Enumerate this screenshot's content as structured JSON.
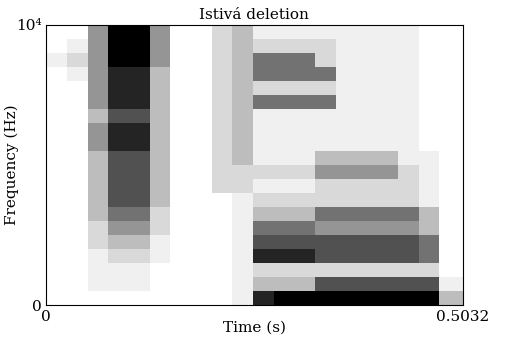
{
  "chart_data": {
    "type": "spectrogram",
    "title": "Istivá deletion",
    "x_label": "Time (s)",
    "y_label": "Frequency (Hz)",
    "xlim": [
      0,
      0.5032
    ],
    "ylim": [
      0,
      10000
    ],
    "xticks": [
      0,
      0.5032
    ],
    "yticks": [
      0,
      {
        "value": 10000,
        "label": "10⁴"
      }
    ],
    "x_edges": [
      0,
      0.025,
      0.05,
      0.075,
      0.1,
      0.125,
      0.15,
      0.175,
      0.2,
      0.225,
      0.25,
      0.275,
      0.3,
      0.325,
      0.35,
      0.375,
      0.4,
      0.425,
      0.45,
      0.475,
      0.5032
    ],
    "y_edges": [
      0,
      500,
      1000,
      1500,
      2000,
      2500,
      3000,
      3500,
      4000,
      4500,
      5000,
      5500,
      6000,
      6500,
      7000,
      7500,
      8000,
      8500,
      9000,
      9500,
      10000
    ],
    "cells": [
      [
        0,
        0,
        0,
        0,
        0,
        0,
        0,
        0,
        0,
        1,
        7,
        8,
        8,
        8,
        8,
        8,
        8,
        8,
        8,
        3
      ],
      [
        0,
        0,
        1,
        1,
        1,
        0,
        0,
        0,
        0,
        1,
        3,
        3,
        3,
        6,
        6,
        6,
        6,
        6,
        6,
        1
      ],
      [
        0,
        0,
        1,
        1,
        1,
        0,
        0,
        0,
        0,
        1,
        2,
        2,
        2,
        2,
        2,
        2,
        2,
        2,
        2,
        0
      ],
      [
        0,
        0,
        1,
        2,
        2,
        1,
        0,
        0,
        0,
        1,
        7,
        7,
        7,
        6,
        6,
        6,
        6,
        6,
        5,
        0
      ],
      [
        0,
        0,
        2,
        3,
        3,
        1,
        0,
        0,
        0,
        1,
        6,
        6,
        6,
        6,
        6,
        6,
        6,
        6,
        5,
        0
      ],
      [
        0,
        0,
        2,
        4,
        4,
        2,
        0,
        0,
        0,
        1,
        5,
        5,
        5,
        4,
        4,
        4,
        4,
        4,
        3,
        0
      ],
      [
        0,
        0,
        3,
        5,
        5,
        2,
        0,
        0,
        0,
        1,
        3,
        3,
        3,
        5,
        5,
        5,
        5,
        5,
        3,
        0
      ],
      [
        0,
        0,
        3,
        6,
        6,
        3,
        0,
        0,
        0,
        1,
        2,
        2,
        2,
        2,
        2,
        2,
        2,
        2,
        1,
        0
      ],
      [
        0,
        0,
        3,
        6,
        6,
        3,
        0,
        0,
        2,
        2,
        1,
        1,
        1,
        2,
        2,
        2,
        2,
        2,
        1,
        0
      ],
      [
        0,
        0,
        3,
        6,
        6,
        3,
        0,
        0,
        2,
        2,
        2,
        2,
        2,
        4,
        4,
        4,
        4,
        2,
        1,
        0
      ],
      [
        0,
        0,
        3,
        6,
        6,
        3,
        0,
        0,
        2,
        3,
        1,
        1,
        1,
        3,
        3,
        3,
        3,
        1,
        1,
        0
      ],
      [
        0,
        0,
        4,
        7,
        7,
        3,
        0,
        0,
        2,
        3,
        1,
        1,
        1,
        1,
        1,
        1,
        1,
        1,
        0,
        0
      ],
      [
        0,
        0,
        4,
        7,
        7,
        3,
        0,
        0,
        2,
        3,
        1,
        1,
        1,
        1,
        1,
        1,
        1,
        1,
        0,
        0
      ],
      [
        0,
        0,
        3,
        6,
        6,
        3,
        0,
        0,
        2,
        3,
        1,
        1,
        1,
        1,
        1,
        1,
        1,
        1,
        0,
        0
      ],
      [
        0,
        0,
        4,
        7,
        7,
        3,
        0,
        0,
        2,
        3,
        5,
        5,
        5,
        5,
        1,
        1,
        1,
        1,
        0,
        0
      ],
      [
        0,
        0,
        4,
        7,
        7,
        3,
        0,
        0,
        2,
        3,
        2,
        2,
        2,
        2,
        1,
        1,
        1,
        1,
        0,
        0
      ],
      [
        0,
        1,
        4,
        7,
        7,
        3,
        0,
        0,
        2,
        3,
        5,
        5,
        5,
        5,
        1,
        1,
        1,
        1,
        0,
        0
      ],
      [
        1,
        2,
        4,
        8,
        8,
        4,
        0,
        0,
        2,
        3,
        5,
        5,
        5,
        2,
        1,
        1,
        1,
        1,
        0,
        0
      ],
      [
        0,
        1,
        4,
        8,
        8,
        4,
        0,
        0,
        2,
        3,
        2,
        2,
        2,
        2,
        1,
        1,
        1,
        1,
        0,
        0
      ],
      [
        0,
        0,
        4,
        8,
        8,
        4,
        0,
        0,
        2,
        3,
        1,
        1,
        1,
        1,
        1,
        1,
        1,
        1,
        0,
        0
      ]
    ]
  }
}
